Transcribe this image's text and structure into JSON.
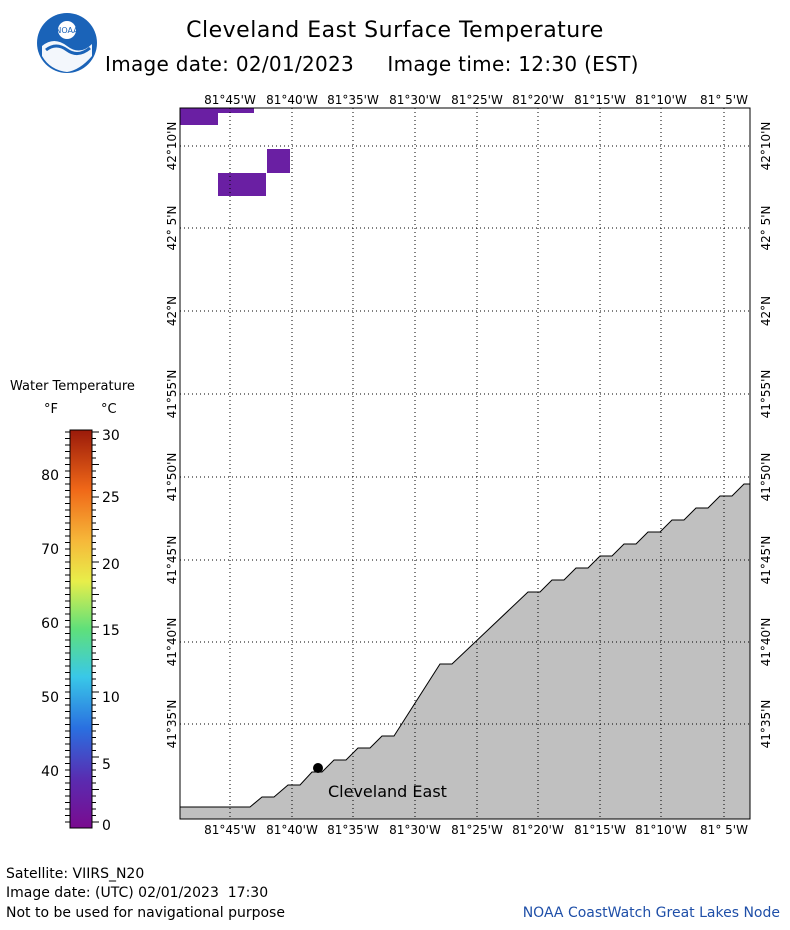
{
  "title": "Cleveland East Surface Temperature",
  "subtitle": {
    "date_label": "Image date:",
    "date": "02/01/2023",
    "time_label": "Image time:",
    "time": "12:30 (EST)"
  },
  "logo": {
    "text": "NOAA",
    "icon": "noaa-logo"
  },
  "map": {
    "lon_labels": [
      "81°45'W",
      "81°40'W",
      "81°35'W",
      "81°30'W",
      "81°25'W",
      "81°20'W",
      "81°15'W",
      "81°10'W",
      "81° 5'W"
    ],
    "lat_labels": [
      "42°10'N",
      "42° 5'N",
      "42°N",
      "41°55'N",
      "41°50'N",
      "41°45'N",
      "41°40'N",
      "41°35'N"
    ],
    "station": {
      "name": "Cleveland East"
    },
    "colors": {
      "land": "#c0c0c0",
      "water_cold": "#6a1fa3",
      "grid": "#000000"
    }
  },
  "legend": {
    "title": "Water Temperature",
    "unit_f": "°F",
    "unit_c": "°C",
    "fahrenheit": [
      "80",
      "70",
      "60",
      "50",
      "40"
    ],
    "celsius": [
      "30",
      "25",
      "20",
      "15",
      "10",
      "5",
      "0"
    ]
  },
  "footer": {
    "satellite": "Satellite: VIIRS_N20",
    "utc_date": "Image date: (UTC) 02/01/2023  17:30",
    "disclaimer": "Not to be used for navigational purpose",
    "credit": "NOAA CoastWatch Great Lakes Node"
  }
}
